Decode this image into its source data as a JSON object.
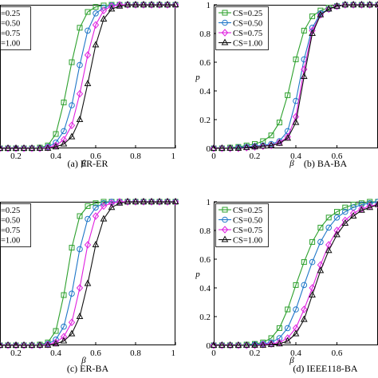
{
  "colors": {
    "cs025": "#2ca02c",
    "cs050": "#1f77c8",
    "cs075": "#e020e0",
    "cs100": "#111111"
  },
  "chart_data": [
    {
      "type": "line",
      "caption": "(a) ER-ER",
      "xlabel": "β",
      "ylabel": "",
      "x_ticks": [
        "0.2",
        "0.4",
        "0.6",
        "0.8",
        "1"
      ],
      "y_ticks": [],
      "xlim": [
        0.12,
        1.0
      ],
      "ylim": [
        0,
        1
      ],
      "legend": "top-left",
      "legend_labels": [
        "=0.25",
        "=0.50",
        "=0.75",
        "=1.00"
      ],
      "x": [
        0.12,
        0.16,
        0.2,
        0.24,
        0.28,
        0.32,
        0.36,
        0.4,
        0.44,
        0.48,
        0.52,
        0.56,
        0.6,
        0.64,
        0.68,
        0.72,
        0.76,
        0.8,
        0.84,
        0.88,
        0.92,
        0.96,
        1.0
      ],
      "series": [
        {
          "name": "CS=0.25",
          "marker": "square",
          "values": [
            0,
            0,
            0,
            0,
            0,
            0.005,
            0.02,
            0.1,
            0.32,
            0.6,
            0.84,
            0.95,
            0.985,
            0.995,
            1,
            1,
            1,
            1,
            1,
            1,
            1,
            1,
            1
          ]
        },
        {
          "name": "CS=0.50",
          "marker": "circle",
          "values": [
            0,
            0,
            0,
            0,
            0,
            0,
            0.01,
            0.04,
            0.12,
            0.3,
            0.58,
            0.82,
            0.94,
            0.98,
            0.995,
            1,
            1,
            1,
            1,
            1,
            1,
            1,
            1
          ]
        },
        {
          "name": "CS=0.75",
          "marker": "diamond",
          "values": [
            0,
            0,
            0,
            0,
            0,
            0,
            0.005,
            0.02,
            0.06,
            0.16,
            0.38,
            0.65,
            0.86,
            0.96,
            0.99,
            1,
            1,
            1,
            1,
            1,
            1,
            1,
            1
          ]
        },
        {
          "name": "CS=1.00",
          "marker": "triangle",
          "values": [
            0,
            0,
            0,
            0,
            0,
            0,
            0,
            0.01,
            0.03,
            0.08,
            0.2,
            0.45,
            0.72,
            0.9,
            0.97,
            0.99,
            1,
            1,
            1,
            1,
            1,
            1,
            1
          ]
        }
      ]
    },
    {
      "type": "line",
      "caption": "(b) BA-BA",
      "xlabel": "β",
      "ylabel": "p",
      "x_ticks": [
        "0",
        "0.2",
        "0.4",
        "0.6"
      ],
      "y_ticks": [
        "0",
        "0.2",
        "0.4",
        "0.6",
        "0.8",
        "1"
      ],
      "xlim": [
        0,
        0.8
      ],
      "ylim": [
        0,
        1
      ],
      "legend": "top-left",
      "legend_labels": [
        "CS=0.25",
        "CS=0.50",
        "CS=0.75",
        "CS=1.00"
      ],
      "x": [
        0,
        0.04,
        0.08,
        0.12,
        0.16,
        0.2,
        0.24,
        0.28,
        0.32,
        0.36,
        0.4,
        0.44,
        0.48,
        0.52,
        0.56,
        0.6,
        0.64,
        0.68,
        0.72,
        0.76,
        0.8
      ],
      "series": [
        {
          "name": "CS=0.25",
          "marker": "square",
          "values": [
            0,
            0,
            0.005,
            0.01,
            0.02,
            0.03,
            0.05,
            0.09,
            0.18,
            0.37,
            0.62,
            0.82,
            0.92,
            0.96,
            0.98,
            0.99,
            1,
            1,
            1,
            1,
            1
          ]
        },
        {
          "name": "CS=0.50",
          "marker": "circle",
          "values": [
            0,
            0,
            0,
            0.005,
            0.01,
            0.015,
            0.02,
            0.03,
            0.05,
            0.12,
            0.33,
            0.62,
            0.84,
            0.94,
            0.97,
            0.99,
            1,
            1,
            1,
            1,
            1
          ]
        },
        {
          "name": "CS=0.75",
          "marker": "diamond",
          "values": [
            0,
            0,
            0,
            0,
            0.005,
            0.01,
            0.015,
            0.02,
            0.04,
            0.08,
            0.22,
            0.55,
            0.82,
            0.93,
            0.97,
            0.99,
            1,
            1,
            1,
            1,
            1
          ]
        },
        {
          "name": "CS=1.00",
          "marker": "triangle",
          "values": [
            0,
            0,
            0,
            0,
            0.005,
            0.01,
            0.015,
            0.02,
            0.035,
            0.07,
            0.18,
            0.5,
            0.8,
            0.93,
            0.97,
            0.99,
            1,
            1,
            1,
            1,
            1
          ]
        }
      ]
    },
    {
      "type": "line",
      "caption": "(c) ER-BA",
      "xlabel": "β",
      "ylabel": "",
      "x_ticks": [
        "0.2",
        "0.4",
        "0.6",
        "0.8",
        "1"
      ],
      "y_ticks": [],
      "xlim": [
        0.12,
        1.0
      ],
      "ylim": [
        0,
        1
      ],
      "legend": "top-left",
      "legend_labels": [
        "=0.25",
        "=0.50",
        "=0.75",
        "=1.00"
      ],
      "x": [
        0.12,
        0.16,
        0.2,
        0.24,
        0.28,
        0.32,
        0.36,
        0.4,
        0.44,
        0.48,
        0.52,
        0.56,
        0.6,
        0.64,
        0.68,
        0.72,
        0.76,
        0.8,
        0.84,
        0.88,
        0.92,
        0.96,
        1.0
      ],
      "series": [
        {
          "name": "CS=0.25",
          "marker": "square",
          "values": [
            0,
            0,
            0,
            0,
            0,
            0.005,
            0.02,
            0.1,
            0.35,
            0.68,
            0.9,
            0.97,
            0.99,
            1,
            1,
            1,
            1,
            1,
            1,
            1,
            1,
            1,
            1
          ]
        },
        {
          "name": "CS=0.50",
          "marker": "circle",
          "values": [
            0,
            0,
            0,
            0,
            0,
            0,
            0.01,
            0.04,
            0.13,
            0.36,
            0.67,
            0.88,
            0.96,
            0.99,
            1,
            1,
            1,
            1,
            1,
            1,
            1,
            1,
            1
          ]
        },
        {
          "name": "CS=0.75",
          "marker": "diamond",
          "values": [
            0,
            0,
            0,
            0,
            0,
            0,
            0.005,
            0.02,
            0.06,
            0.16,
            0.4,
            0.7,
            0.9,
            0.97,
            0.99,
            1,
            1,
            1,
            1,
            1,
            1,
            1,
            1
          ]
        },
        {
          "name": "CS=1.00",
          "marker": "triangle",
          "values": [
            0,
            0,
            0,
            0,
            0,
            0,
            0,
            0.01,
            0.03,
            0.08,
            0.2,
            0.43,
            0.7,
            0.88,
            0.96,
            0.99,
            1,
            1,
            1,
            1,
            1,
            1,
            1
          ]
        }
      ]
    },
    {
      "type": "line",
      "caption": "(d) IEEE118-BA",
      "xlabel": "β",
      "ylabel": "p",
      "x_ticks": [
        "0",
        "0.2",
        "0.4",
        "0.6"
      ],
      "y_ticks": [
        "0",
        "0.2",
        "0.4",
        "0.6",
        "0.8",
        "1"
      ],
      "xlim": [
        0,
        0.8
      ],
      "ylim": [
        0,
        1
      ],
      "legend": "top-left",
      "legend_labels": [
        "CS=0.25",
        "CS=0.50",
        "CS=0.75",
        "CS=1.00"
      ],
      "x": [
        0,
        0.04,
        0.08,
        0.12,
        0.16,
        0.2,
        0.24,
        0.28,
        0.32,
        0.36,
        0.4,
        0.44,
        0.48,
        0.52,
        0.56,
        0.6,
        0.64,
        0.68,
        0.72,
        0.76,
        0.8
      ],
      "series": [
        {
          "name": "CS=0.25",
          "marker": "square",
          "values": [
            0,
            0,
            0,
            0,
            0.005,
            0.01,
            0.02,
            0.05,
            0.12,
            0.25,
            0.42,
            0.58,
            0.72,
            0.82,
            0.89,
            0.93,
            0.96,
            0.98,
            0.99,
            1,
            1
          ]
        },
        {
          "name": "CS=0.50",
          "marker": "circle",
          "values": [
            0,
            0,
            0,
            0,
            0,
            0.005,
            0.01,
            0.02,
            0.05,
            0.12,
            0.25,
            0.42,
            0.58,
            0.72,
            0.82,
            0.89,
            0.93,
            0.96,
            0.98,
            0.99,
            1
          ]
        },
        {
          "name": "CS=0.75",
          "marker": "diamond",
          "values": [
            0,
            0,
            0,
            0,
            0,
            0,
            0.005,
            0.01,
            0.02,
            0.05,
            0.12,
            0.25,
            0.4,
            0.56,
            0.7,
            0.8,
            0.87,
            0.92,
            0.95,
            0.97,
            0.98
          ]
        },
        {
          "name": "CS=1.00",
          "marker": "triangle",
          "values": [
            0,
            0,
            0,
            0,
            0,
            0,
            0,
            0.005,
            0.01,
            0.03,
            0.08,
            0.18,
            0.35,
            0.52,
            0.66,
            0.77,
            0.85,
            0.9,
            0.94,
            0.96,
            0.98
          ]
        }
      ]
    }
  ]
}
